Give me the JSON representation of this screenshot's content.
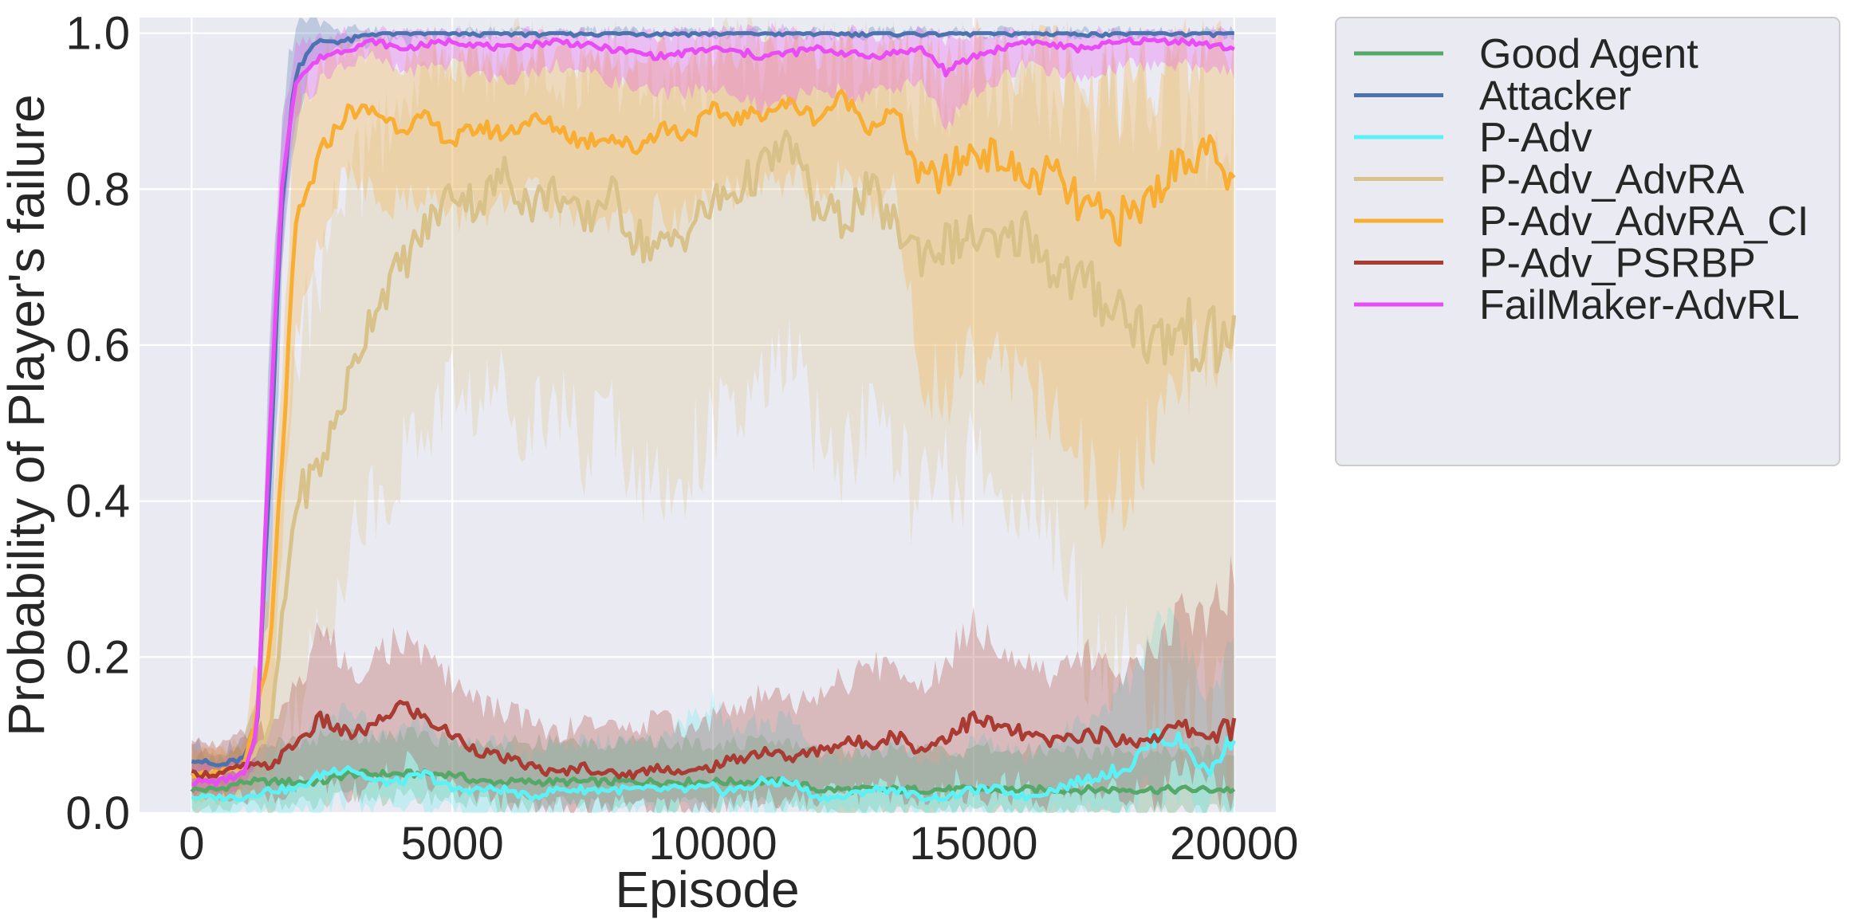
{
  "chart_data": {
    "type": "line",
    "title": "",
    "xlabel": "Episode",
    "ylabel": "Probability of Player's failure",
    "xlim": [
      -1000,
      20800
    ],
    "ylim": [
      0.0,
      1.02
    ],
    "xticks": [
      0,
      5000,
      10000,
      15000,
      20000
    ],
    "xtick_labels": [
      "0",
      "5000",
      "10000",
      "15000",
      "20000"
    ],
    "yticks": [
      0.0,
      0.2,
      0.4,
      0.6,
      0.8,
      1.0
    ],
    "ytick_labels": [
      "0.0",
      "0.2",
      "0.4",
      "0.6",
      "0.8",
      "1.0"
    ],
    "grid": true,
    "legend_position": "outside-right-top",
    "background": "#eaeaf2",
    "series": [
      {
        "name": "Good Agent",
        "color": "#55a868",
        "x": [
          0,
          500,
          1000,
          1500,
          2000,
          2500,
          3000,
          3500,
          4000,
          4500,
          5000,
          5500,
          6000,
          6500,
          7000,
          7500,
          8000,
          8500,
          9000,
          9500,
          10000,
          10500,
          11000,
          11500,
          12000,
          12500,
          13000,
          13500,
          14000,
          14500,
          15000,
          15500,
          16000,
          16500,
          17000,
          17500,
          18000,
          18500,
          19000,
          19500,
          20000
        ],
        "values": [
          0.03,
          0.03,
          0.04,
          0.04,
          0.04,
          0.04,
          0.05,
          0.05,
          0.05,
          0.05,
          0.05,
          0.04,
          0.04,
          0.04,
          0.04,
          0.04,
          0.04,
          0.04,
          0.04,
          0.04,
          0.04,
          0.04,
          0.04,
          0.04,
          0.03,
          0.03,
          0.03,
          0.03,
          0.03,
          0.03,
          0.03,
          0.03,
          0.03,
          0.03,
          0.03,
          0.03,
          0.03,
          0.03,
          0.03,
          0.03,
          0.03
        ],
        "lower": [
          0.0,
          0.0,
          0.01,
          0.01,
          0.01,
          0.01,
          0.02,
          0.02,
          0.02,
          0.02,
          0.02,
          0.01,
          0.01,
          0.01,
          0.01,
          0.01,
          0.01,
          0.01,
          0.01,
          0.01,
          0.01,
          0.01,
          0.01,
          0.01,
          0.0,
          0.0,
          0.0,
          0.0,
          0.0,
          0.0,
          0.0,
          0.0,
          0.0,
          0.0,
          0.0,
          0.0,
          0.0,
          0.0,
          0.0,
          0.0,
          0.0
        ],
        "upper": [
          0.07,
          0.07,
          0.08,
          0.09,
          0.09,
          0.1,
          0.1,
          0.1,
          0.1,
          0.1,
          0.09,
          0.09,
          0.09,
          0.09,
          0.09,
          0.09,
          0.09,
          0.09,
          0.09,
          0.09,
          0.09,
          0.09,
          0.09,
          0.09,
          0.08,
          0.08,
          0.08,
          0.08,
          0.08,
          0.08,
          0.08,
          0.08,
          0.08,
          0.08,
          0.08,
          0.08,
          0.08,
          0.08,
          0.08,
          0.08,
          0.08
        ]
      },
      {
        "name": "Attacker",
        "color": "#4c72b0",
        "x": [
          0,
          500,
          1000,
          1250,
          1500,
          1750,
          2000,
          2250,
          2500,
          3000,
          3500,
          4000,
          5000,
          6000,
          7000,
          8000,
          9000,
          10000,
          11000,
          12000,
          13000,
          14000,
          15000,
          16000,
          17000,
          18000,
          19000,
          20000
        ],
        "values": [
          0.07,
          0.06,
          0.07,
          0.1,
          0.45,
          0.8,
          0.95,
          0.98,
          0.99,
          0.99,
          1.0,
          1.0,
          1.0,
          1.0,
          1.0,
          1.0,
          1.0,
          1.0,
          1.0,
          1.0,
          1.0,
          1.0,
          1.0,
          1.0,
          1.0,
          1.0,
          1.0,
          1.0
        ],
        "lower": [
          0.05,
          0.04,
          0.05,
          0.07,
          0.3,
          0.7,
          0.88,
          0.95,
          0.97,
          0.98,
          0.99,
          0.99,
          1.0,
          1.0,
          1.0,
          1.0,
          1.0,
          1.0,
          1.0,
          1.0,
          1.0,
          1.0,
          1.0,
          1.0,
          1.0,
          1.0,
          1.0,
          1.0
        ],
        "upper": [
          0.09,
          0.08,
          0.09,
          0.14,
          0.6,
          0.92,
          1.02,
          1.02,
          1.01,
          1.01,
          1.0,
          1.0,
          1.0,
          1.0,
          1.0,
          1.0,
          1.0,
          1.0,
          1.0,
          1.0,
          1.0,
          1.0,
          1.0,
          1.0,
          1.0,
          1.0,
          1.0,
          1.0
        ]
      },
      {
        "name": "P-Adv",
        "color": "#5cf2f5",
        "x": [
          0,
          500,
          1000,
          1500,
          2000,
          2500,
          3000,
          3500,
          4000,
          4500,
          5000,
          5500,
          6000,
          6500,
          7000,
          7500,
          8000,
          8500,
          9000,
          9500,
          10000,
          10500,
          11000,
          11500,
          12000,
          12500,
          13000,
          13500,
          14000,
          14500,
          15000,
          15500,
          16000,
          16500,
          17000,
          17500,
          18000,
          18500,
          19000,
          19500,
          20000
        ],
        "values": [
          0.02,
          0.02,
          0.02,
          0.03,
          0.03,
          0.05,
          0.06,
          0.04,
          0.04,
          0.05,
          0.03,
          0.03,
          0.03,
          0.02,
          0.03,
          0.03,
          0.03,
          0.03,
          0.03,
          0.03,
          0.03,
          0.03,
          0.04,
          0.04,
          0.02,
          0.02,
          0.03,
          0.03,
          0.02,
          0.02,
          0.03,
          0.03,
          0.02,
          0.03,
          0.04,
          0.05,
          0.06,
          0.1,
          0.09,
          0.05,
          0.1
        ],
        "lower": [
          0.0,
          0.0,
          0.0,
          0.0,
          0.0,
          0.01,
          0.02,
          0.01,
          0.01,
          0.01,
          0.0,
          0.0,
          0.0,
          0.0,
          0.0,
          0.0,
          0.0,
          0.0,
          0.0,
          0.0,
          0.0,
          0.0,
          0.0,
          0.0,
          0.0,
          0.0,
          0.0,
          0.0,
          0.0,
          0.0,
          0.0,
          0.0,
          0.0,
          0.0,
          0.0,
          0.01,
          0.01,
          0.03,
          0.02,
          0.0,
          0.02
        ],
        "upper": [
          0.06,
          0.06,
          0.06,
          0.08,
          0.09,
          0.12,
          0.14,
          0.1,
          0.1,
          0.12,
          0.09,
          0.09,
          0.09,
          0.07,
          0.09,
          0.09,
          0.09,
          0.09,
          0.09,
          0.12,
          0.14,
          0.1,
          0.12,
          0.12,
          0.07,
          0.07,
          0.09,
          0.09,
          0.07,
          0.07,
          0.09,
          0.09,
          0.07,
          0.09,
          0.11,
          0.13,
          0.17,
          0.25,
          0.22,
          0.14,
          0.22
        ]
      },
      {
        "name": "P-Adv_AdvRA",
        "color": "#d8c28a",
        "x": [
          0,
          500,
          1000,
          1500,
          2000,
          2500,
          3000,
          3500,
          4000,
          4500,
          5000,
          5500,
          6000,
          6500,
          7000,
          7500,
          8000,
          8500,
          9000,
          9500,
          10000,
          10500,
          11000,
          11500,
          12000,
          12500,
          13000,
          13500,
          14000,
          14500,
          15000,
          15500,
          16000,
          16500,
          17000,
          17500,
          18000,
          18500,
          19000,
          19500,
          20000
        ],
        "values": [
          0.05,
          0.05,
          0.06,
          0.1,
          0.4,
          0.45,
          0.55,
          0.65,
          0.7,
          0.75,
          0.8,
          0.78,
          0.82,
          0.78,
          0.8,
          0.75,
          0.8,
          0.74,
          0.72,
          0.75,
          0.78,
          0.8,
          0.83,
          0.86,
          0.77,
          0.76,
          0.8,
          0.75,
          0.72,
          0.73,
          0.74,
          0.72,
          0.75,
          0.7,
          0.68,
          0.66,
          0.64,
          0.6,
          0.62,
          0.6,
          0.61
        ],
        "lower": [
          0.02,
          0.02,
          0.03,
          0.05,
          0.15,
          0.22,
          0.35,
          0.4,
          0.45,
          0.5,
          0.55,
          0.52,
          0.55,
          0.5,
          0.55,
          0.45,
          0.52,
          0.45,
          0.4,
          0.45,
          0.5,
          0.5,
          0.55,
          0.6,
          0.48,
          0.45,
          0.52,
          0.45,
          0.4,
          0.42,
          0.45,
          0.4,
          0.42,
          0.35,
          0.25,
          0.2,
          0.18,
          0.15,
          0.15,
          0.1,
          0.1
        ],
        "upper": [
          0.08,
          0.08,
          0.09,
          0.2,
          0.6,
          0.7,
          0.8,
          0.85,
          0.9,
          0.95,
          0.97,
          0.96,
          0.98,
          0.96,
          0.97,
          0.95,
          0.97,
          0.95,
          0.93,
          0.95,
          0.96,
          0.97,
          0.98,
          0.99,
          0.96,
          0.95,
          0.97,
          0.95,
          0.93,
          0.94,
          0.95,
          0.93,
          0.95,
          0.92,
          0.9,
          0.9,
          0.92,
          0.9,
          0.92,
          0.9,
          0.95
        ]
      },
      {
        "name": "P-Adv_AdvRA_CI",
        "color": "#f8ad33",
        "x": [
          0,
          500,
          1000,
          1500,
          2000,
          2500,
          3000,
          3500,
          4000,
          4500,
          5000,
          5500,
          6000,
          6500,
          7000,
          7500,
          8000,
          8500,
          9000,
          9500,
          10000,
          10500,
          11000,
          11500,
          12000,
          12500,
          13000,
          13500,
          14000,
          14500,
          15000,
          15500,
          16000,
          16500,
          17000,
          17500,
          18000,
          18500,
          19000,
          19500,
          20000
        ],
        "values": [
          0.05,
          0.05,
          0.06,
          0.2,
          0.75,
          0.85,
          0.9,
          0.9,
          0.88,
          0.89,
          0.86,
          0.88,
          0.87,
          0.89,
          0.88,
          0.86,
          0.87,
          0.85,
          0.88,
          0.87,
          0.9,
          0.89,
          0.9,
          0.91,
          0.89,
          0.92,
          0.88,
          0.9,
          0.81,
          0.82,
          0.85,
          0.84,
          0.81,
          0.82,
          0.78,
          0.76,
          0.76,
          0.8,
          0.84,
          0.85,
          0.8
        ],
        "lower": [
          0.02,
          0.02,
          0.03,
          0.1,
          0.6,
          0.75,
          0.82,
          0.8,
          0.78,
          0.8,
          0.76,
          0.78,
          0.77,
          0.79,
          0.78,
          0.75,
          0.77,
          0.74,
          0.77,
          0.76,
          0.8,
          0.79,
          0.8,
          0.82,
          0.79,
          0.82,
          0.78,
          0.8,
          0.55,
          0.55,
          0.6,
          0.6,
          0.55,
          0.5,
          0.45,
          0.4,
          0.4,
          0.5,
          0.55,
          0.6,
          0.6
        ],
        "upper": [
          0.08,
          0.08,
          0.09,
          0.3,
          0.9,
          0.96,
          0.98,
          0.98,
          0.97,
          0.98,
          0.96,
          0.97,
          0.96,
          0.97,
          0.97,
          0.96,
          0.97,
          0.95,
          0.97,
          0.96,
          0.98,
          0.97,
          0.98,
          0.99,
          0.97,
          0.99,
          0.97,
          0.98,
          0.95,
          0.96,
          0.97,
          0.97,
          0.95,
          0.96,
          0.94,
          0.93,
          0.93,
          0.95,
          0.97,
          0.98,
          0.96
        ]
      },
      {
        "name": "P-Adv_PSRBP",
        "color": "#a93b32",
        "x": [
          0,
          500,
          1000,
          1500,
          2000,
          2500,
          3000,
          3500,
          4000,
          4500,
          5000,
          5500,
          6000,
          6500,
          7000,
          7500,
          8000,
          8500,
          9000,
          9500,
          10000,
          10500,
          11000,
          11500,
          12000,
          12500,
          13000,
          13500,
          14000,
          14500,
          15000,
          15500,
          16000,
          16500,
          17000,
          17500,
          18000,
          18500,
          19000,
          19500,
          20000
        ],
        "values": [
          0.05,
          0.05,
          0.06,
          0.06,
          0.09,
          0.12,
          0.1,
          0.11,
          0.14,
          0.12,
          0.1,
          0.08,
          0.07,
          0.06,
          0.05,
          0.06,
          0.05,
          0.05,
          0.06,
          0.05,
          0.06,
          0.07,
          0.08,
          0.07,
          0.08,
          0.09,
          0.09,
          0.1,
          0.08,
          0.1,
          0.12,
          0.11,
          0.1,
          0.09,
          0.1,
          0.1,
          0.09,
          0.1,
          0.11,
          0.1,
          0.11
        ],
        "lower": [
          0.02,
          0.02,
          0.02,
          0.02,
          0.03,
          0.05,
          0.03,
          0.04,
          0.06,
          0.05,
          0.03,
          0.02,
          0.02,
          0.01,
          0.01,
          0.01,
          0.01,
          0.01,
          0.01,
          0.01,
          0.01,
          0.02,
          0.02,
          0.02,
          0.02,
          0.03,
          0.03,
          0.03,
          0.02,
          0.03,
          0.04,
          0.03,
          0.03,
          0.02,
          0.03,
          0.03,
          0.02,
          0.03,
          0.04,
          0.03,
          0.03
        ],
        "upper": [
          0.09,
          0.09,
          0.1,
          0.11,
          0.16,
          0.24,
          0.18,
          0.2,
          0.22,
          0.2,
          0.17,
          0.14,
          0.13,
          0.12,
          0.1,
          0.12,
          0.11,
          0.11,
          0.12,
          0.11,
          0.12,
          0.14,
          0.15,
          0.14,
          0.15,
          0.17,
          0.18,
          0.2,
          0.16,
          0.2,
          0.25,
          0.22,
          0.2,
          0.18,
          0.2,
          0.2,
          0.18,
          0.22,
          0.26,
          0.25,
          0.3
        ]
      },
      {
        "name": "FailMaker-AdvRL",
        "color": "#e84cf4",
        "x": [
          0,
          500,
          1000,
          1250,
          1500,
          1750,
          2000,
          2500,
          3000,
          3500,
          4000,
          5000,
          6000,
          7000,
          8000,
          9000,
          10000,
          11000,
          12000,
          13000,
          14000,
          14500,
          15000,
          15500,
          16000,
          17000,
          18000,
          19000,
          20000
        ],
        "values": [
          0.04,
          0.04,
          0.05,
          0.1,
          0.5,
          0.82,
          0.94,
          0.97,
          0.98,
          0.99,
          0.98,
          0.99,
          0.98,
          0.99,
          0.98,
          0.97,
          0.98,
          0.97,
          0.98,
          0.97,
          0.98,
          0.95,
          0.97,
          0.98,
          0.99,
          0.98,
          0.99,
          0.99,
          0.98
        ],
        "lower": [
          0.02,
          0.02,
          0.03,
          0.07,
          0.4,
          0.75,
          0.9,
          0.94,
          0.96,
          0.97,
          0.95,
          0.96,
          0.94,
          0.96,
          0.94,
          0.92,
          0.93,
          0.9,
          0.93,
          0.92,
          0.94,
          0.88,
          0.92,
          0.94,
          0.96,
          0.94,
          0.96,
          0.96,
          0.95
        ],
        "upper": [
          0.06,
          0.06,
          0.07,
          0.13,
          0.6,
          0.89,
          0.98,
          1.0,
          1.0,
          1.0,
          1.0,
          1.0,
          1.0,
          1.0,
          1.0,
          1.0,
          1.0,
          1.0,
          1.0,
          1.0,
          1.0,
          1.0,
          1.0,
          1.0,
          1.0,
          1.0,
          1.0,
          1.0,
          1.0
        ]
      }
    ]
  }
}
